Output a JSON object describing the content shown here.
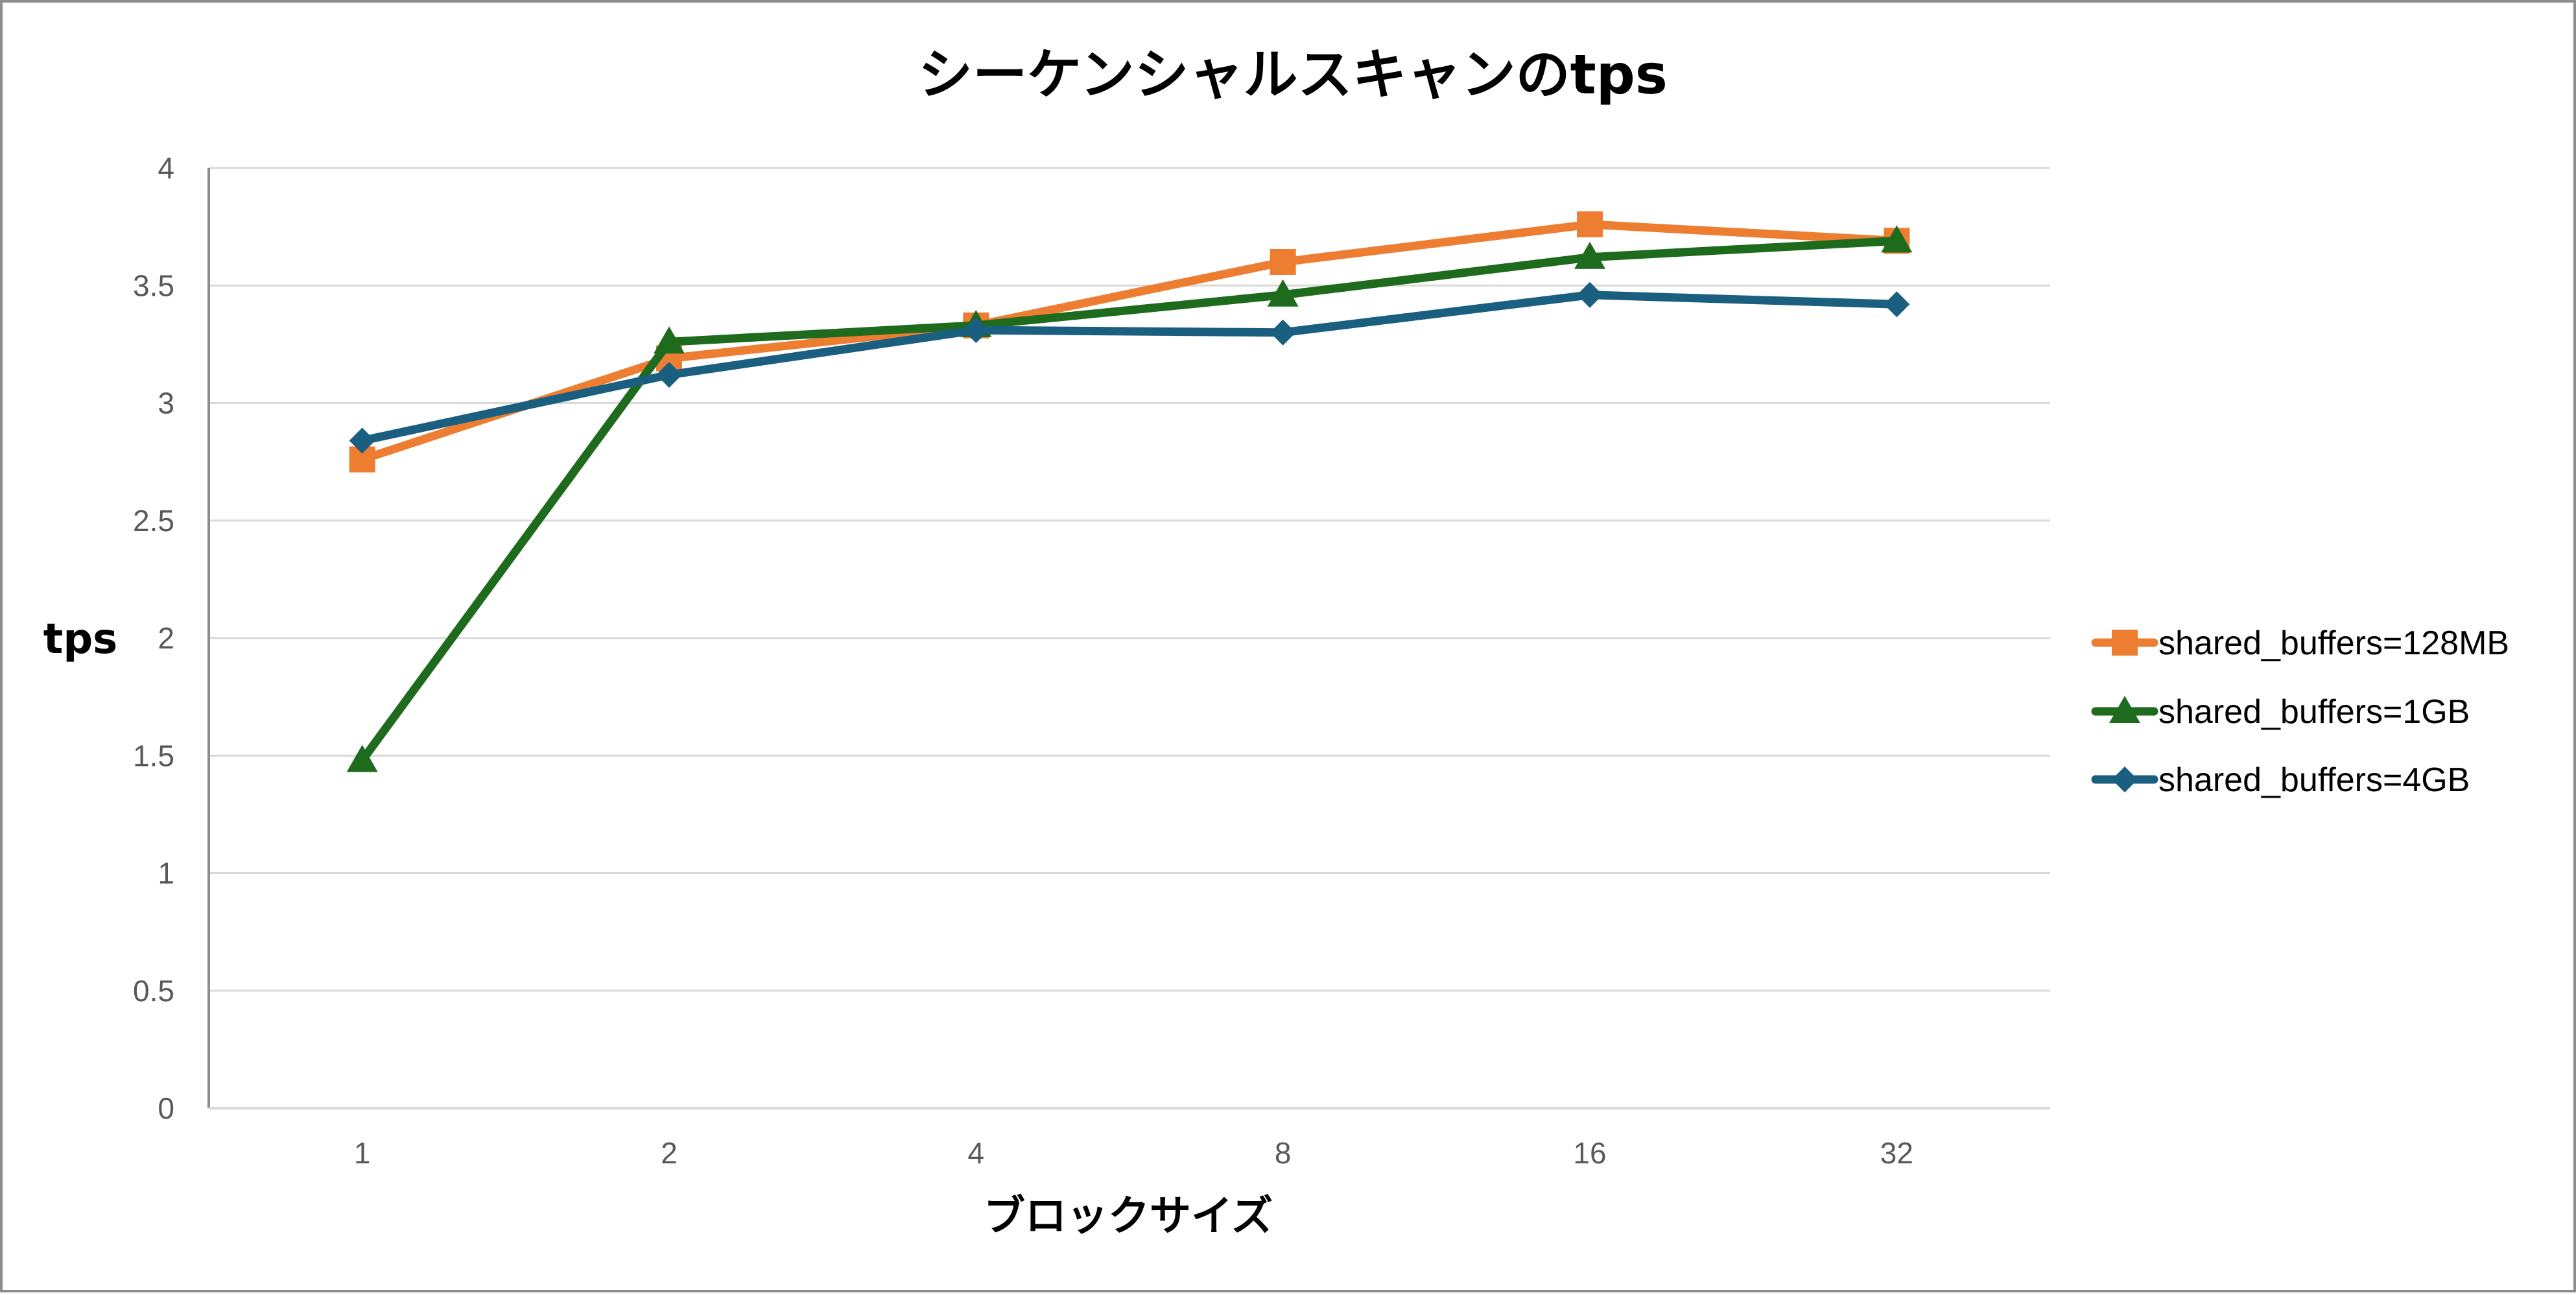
{
  "chart_data": {
    "type": "line",
    "title": "シーケンシャルスキャンのtps",
    "xlabel": "ブロックサイズ",
    "ylabel": "tps",
    "categories": [
      "1",
      "2",
      "4",
      "8",
      "16",
      "32"
    ],
    "ylim": [
      0,
      4
    ],
    "yticks": [
      "0",
      "0.5",
      "1",
      "1.5",
      "2",
      "2.5",
      "3",
      "3.5",
      "4"
    ],
    "grid": "horizontal",
    "legend_position": "right",
    "series": [
      {
        "name": "shared_buffers=128MB",
        "values": [
          2.76,
          3.19,
          3.33,
          3.6,
          3.76,
          3.69
        ],
        "color": "#ED7D31",
        "marker": "square"
      },
      {
        "name": "shared_buffers=1GB",
        "values": [
          1.48,
          3.26,
          3.33,
          3.46,
          3.62,
          3.69
        ],
        "color": "#1E6B1E",
        "marker": "triangle"
      },
      {
        "name": "shared_buffers=4GB",
        "values": [
          2.84,
          3.12,
          3.31,
          3.3,
          3.46,
          3.42
        ],
        "color": "#1B5F80",
        "marker": "diamond"
      }
    ]
  }
}
